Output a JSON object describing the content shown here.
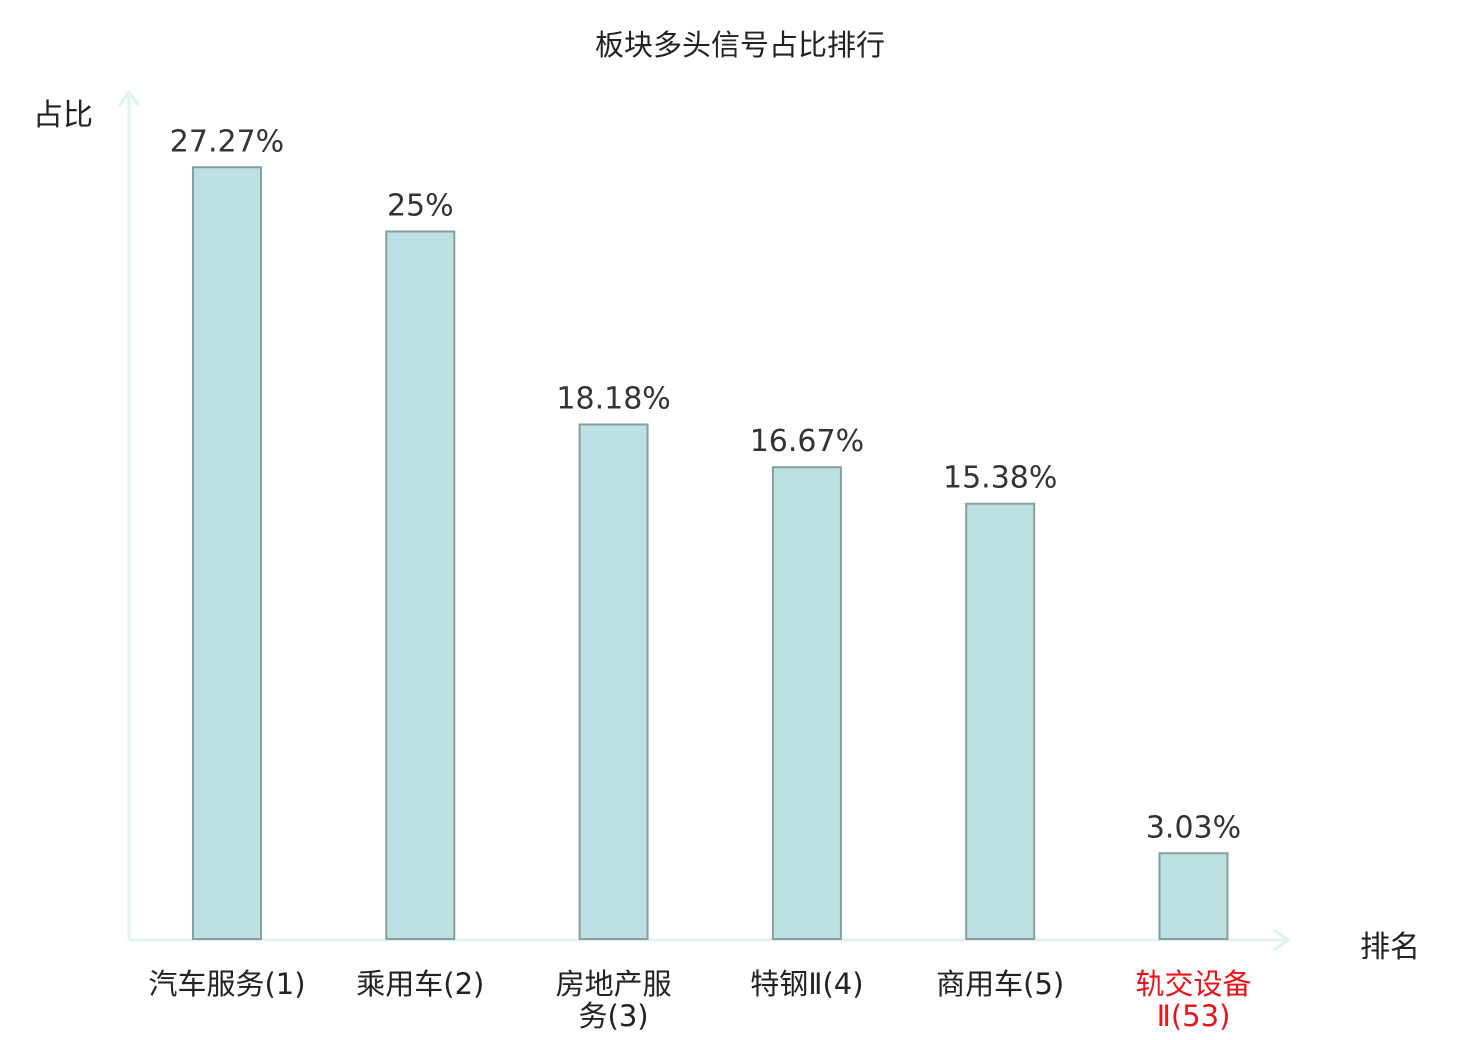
{
  "chart_data": {
    "type": "bar",
    "title": "板块多头信号占比排行",
    "ylabel": "占比",
    "xlabel": "排名",
    "ylim": [
      0,
      30
    ],
    "grid": false,
    "categories": [
      [
        "汽车服务(1)"
      ],
      [
        "乘用车(2)"
      ],
      [
        "房地产服",
        "务(3)"
      ],
      [
        "特钢Ⅱ(4)"
      ],
      [
        "商用车(5)"
      ],
      [
        "轨交设备",
        "Ⅱ(53)"
      ]
    ],
    "values": [
      27.27,
      25,
      18.18,
      16.67,
      15.38,
      3.03
    ],
    "data_labels": [
      "27.27%",
      "25%",
      "18.18%",
      "16.67%",
      "15.38%",
      "3.03%"
    ],
    "highlight_index": 5,
    "colors": {
      "bar_fill": "#bde1e3",
      "bar_stroke": "#869ea0",
      "axis": "#e0f2f1",
      "text": "#333333",
      "highlight_text": "#e8141b"
    }
  }
}
